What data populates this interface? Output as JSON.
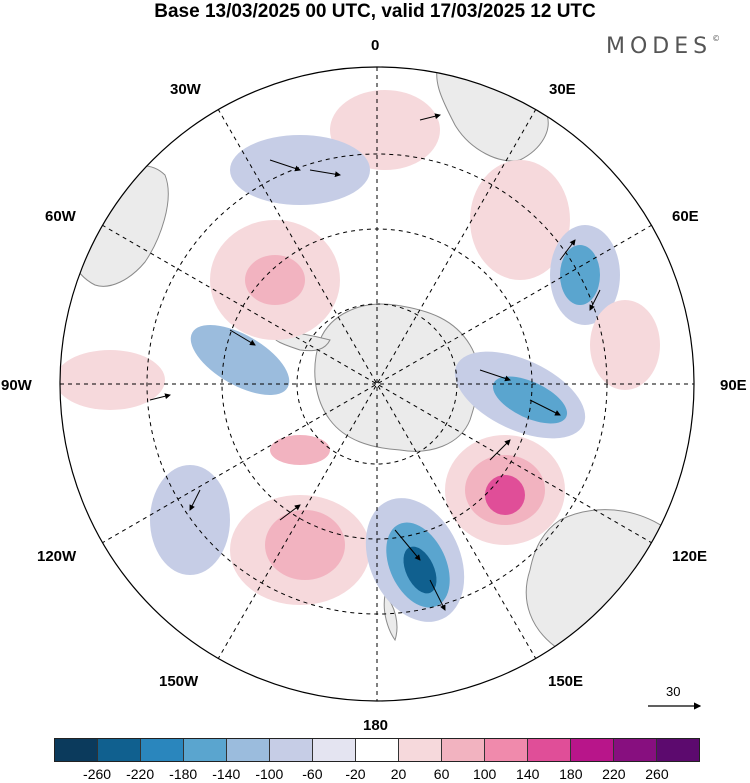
{
  "title": "Base 13/03/2025 00 UTC, valid 17/03/2025 12 UTC",
  "brand": "MODES",
  "brand_mark": "©",
  "longitude_labels": {
    "top": "0",
    "top_left": "30W",
    "top_right": "30E",
    "upper_left": "60W",
    "upper_right": "60E",
    "left": "90W",
    "right": "90E",
    "lower_left": "120W",
    "lower_right": "120E",
    "bottom_left": "150W",
    "bottom_right": "150E",
    "bottom": "180"
  },
  "reference_vector": "30",
  "legend": {
    "ticks": [
      "-260",
      "-220",
      "-180",
      "-140",
      "-100",
      "-60",
      "-20",
      "20",
      "60",
      "100",
      "140",
      "180",
      "220",
      "260"
    ],
    "colors": [
      "#0b3a5c",
      "#10608f",
      "#2a86bd",
      "#5aa5cf",
      "#9bbcdd",
      "#c6cde6",
      "#e4e4f1",
      "#ffffff",
      "#f6d9dc",
      "#f2b3c0",
      "#f08aac",
      "#e04e98",
      "#b8158a",
      "#870f7f",
      "#5c0a6e"
    ]
  },
  "colors": {
    "land": "#ebebeb",
    "coast": "#8a8a8a",
    "grid": "#000000"
  }
}
